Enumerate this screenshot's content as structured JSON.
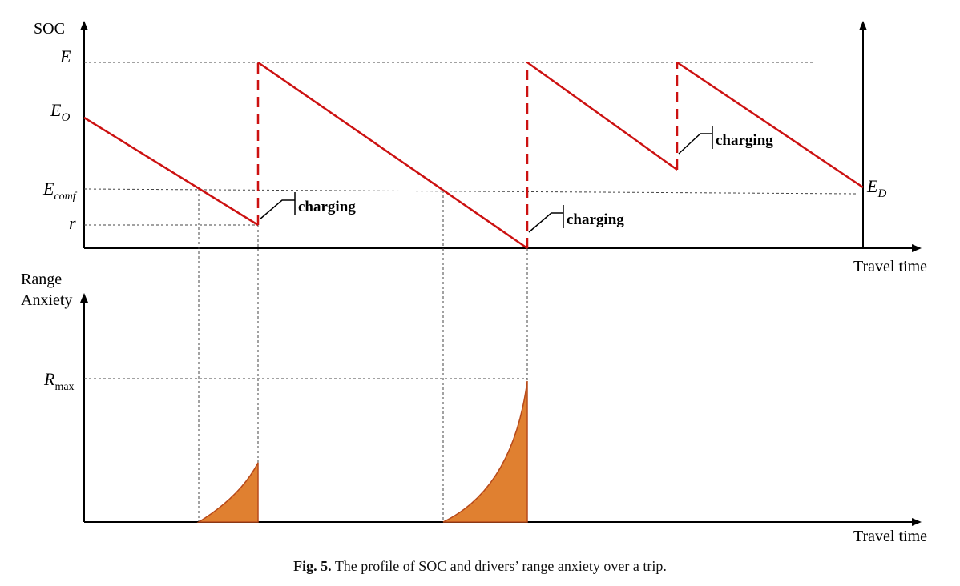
{
  "soc_axis": {
    "ylabel": "SOC",
    "levels": {
      "E": "E",
      "E0_main": "E",
      "E0_sub": "O",
      "Ecomf_main": "E",
      "Ecomf_sub": "comf",
      "r": "r",
      "ED_main": "E",
      "ED_sub": "D"
    },
    "xlabel": "Travel time"
  },
  "anxiety_axis": {
    "ylabel_line1": "Range",
    "ylabel_line2": "Anxiety",
    "rmax_main": "R",
    "rmax_sub": "max",
    "xlabel": "Travel time"
  },
  "charging_labels": [
    "charging",
    "charging",
    "charging"
  ],
  "colors": {
    "soc_line": "#cc1111",
    "anxiety_fill": "#e08030",
    "anxiety_edge": "#b84a1a",
    "axis": "#000000",
    "guide": "#444444"
  },
  "caption": {
    "label": "Fig. 5.",
    "text": " The profile of SOC and drivers’ range anxiety over a trip."
  }
}
